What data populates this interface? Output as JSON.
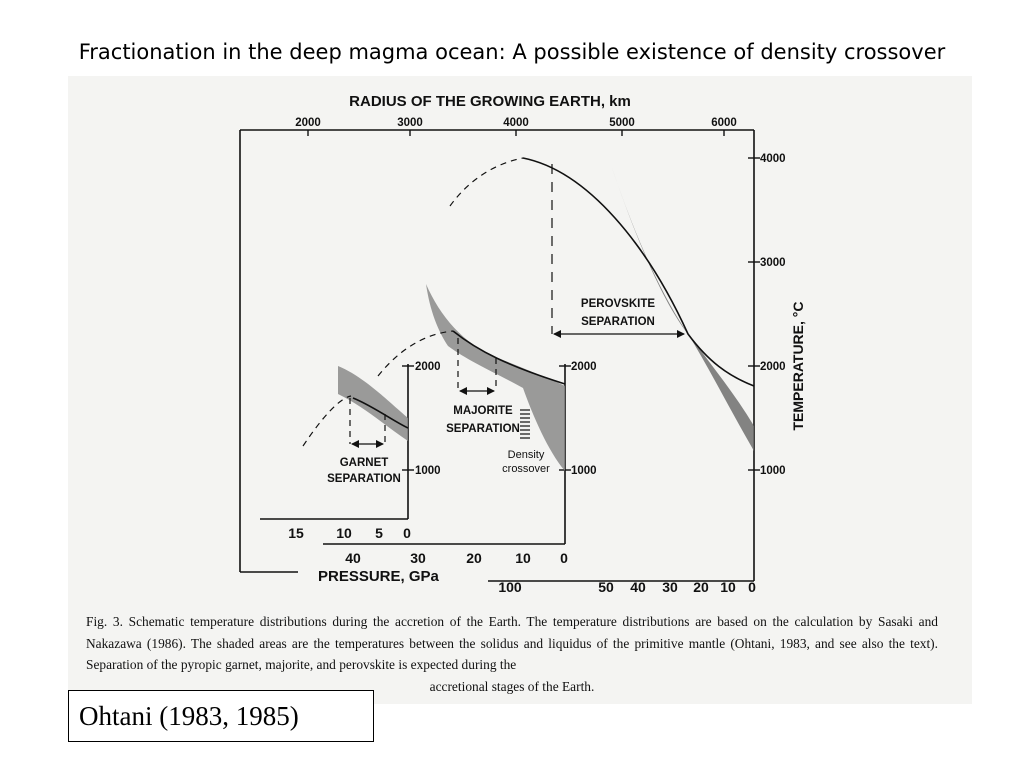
{
  "slide": {
    "title": "Fractionation in the deep magma ocean: A possible existence of density crossover",
    "citation": "Ohtani (1983, 1985)"
  },
  "figure": {
    "top_axis_title": "RADIUS OF THE GROWING EARTH, km",
    "top_ticks": [
      "2000",
      "3000",
      "4000",
      "5000",
      "6000"
    ],
    "right_axis_title": "TEMPERATURE, °C",
    "right_ticks": [
      "4000",
      "3000",
      "2000",
      "1000"
    ],
    "bottom_axis_title": "PRESSURE, GPa",
    "panel_small": {
      "temp_ticks": [
        "2000",
        "1000"
      ],
      "pressure_ticks": [
        "15",
        "10",
        "5",
        "0"
      ]
    },
    "panel_mid": {
      "temp_ticks": [
        "2000",
        "1000"
      ],
      "pressure_ticks": [
        "40",
        "30",
        "20",
        "10",
        "0"
      ]
    },
    "panel_big": {
      "pressure_ticks": [
        "100",
        "50",
        "40",
        "30",
        "20",
        "10",
        "0"
      ]
    },
    "labels": {
      "garnet_1": "GARNET",
      "garnet_2": "SEPARATION",
      "majorite_1": "MAJORITE",
      "majorite_2": "SEPARATION",
      "perovskite_1": "PEROVSKITE",
      "perovskite_2": "SEPARATION",
      "density_1": "Density",
      "density_2": "crossover"
    }
  },
  "caption": {
    "main": "Fig. 3. Schematic temperature distributions during the accretion of the Earth. The temperature distributions are based on the calculation by Sasaki and Nakazawa (1986). The shaded areas are the temperatures between the solidus and liquidus of the primitive mantle (Ohtani, 1983, and see also the text). Separation of the pyropic garnet, majorite, and perovskite is expected during the",
    "last": "accretional stages of the Earth."
  }
}
